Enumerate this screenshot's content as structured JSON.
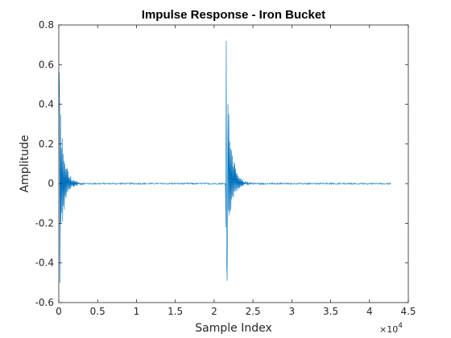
{
  "chart_data": {
    "type": "line",
    "title": "Impulse Response - Iron Bucket",
    "xlabel": "Sample Index",
    "ylabel": "Amplitude",
    "xlim": [
      0,
      45000
    ],
    "ylim": [
      -0.6,
      0.8
    ],
    "x_tick_labels": [
      "0",
      "0.5",
      "1",
      "1.5",
      "2",
      "2.5",
      "3",
      "3.5",
      "4",
      "4.5"
    ],
    "x_tick_values": [
      0,
      5000,
      10000,
      15000,
      20000,
      25000,
      30000,
      35000,
      40000,
      45000
    ],
    "x_multiplier_base": "×10",
    "x_multiplier_exp": "4",
    "y_tick_labels": [
      "-0.6",
      "-0.4",
      "-0.2",
      "0",
      "0.2",
      "0.4",
      "0.6",
      "0.8"
    ],
    "y_tick_values": [
      -0.6,
      -0.4,
      -0.2,
      0,
      0.2,
      0.4,
      0.6,
      0.8
    ],
    "grid": false,
    "series_color": "#0072BD",
    "series": [
      {
        "events": [
          {
            "x_start": 0,
            "peak_pos": 0.56,
            "peak_neg": -0.5,
            "decay_samples": 2600
          },
          {
            "x_start": 21500,
            "peak_pos": 0.72,
            "peak_neg": -0.49,
            "decay_samples": 2700
          }
        ],
        "x_end": 42800,
        "noise_level": 0.004
      }
    ]
  }
}
